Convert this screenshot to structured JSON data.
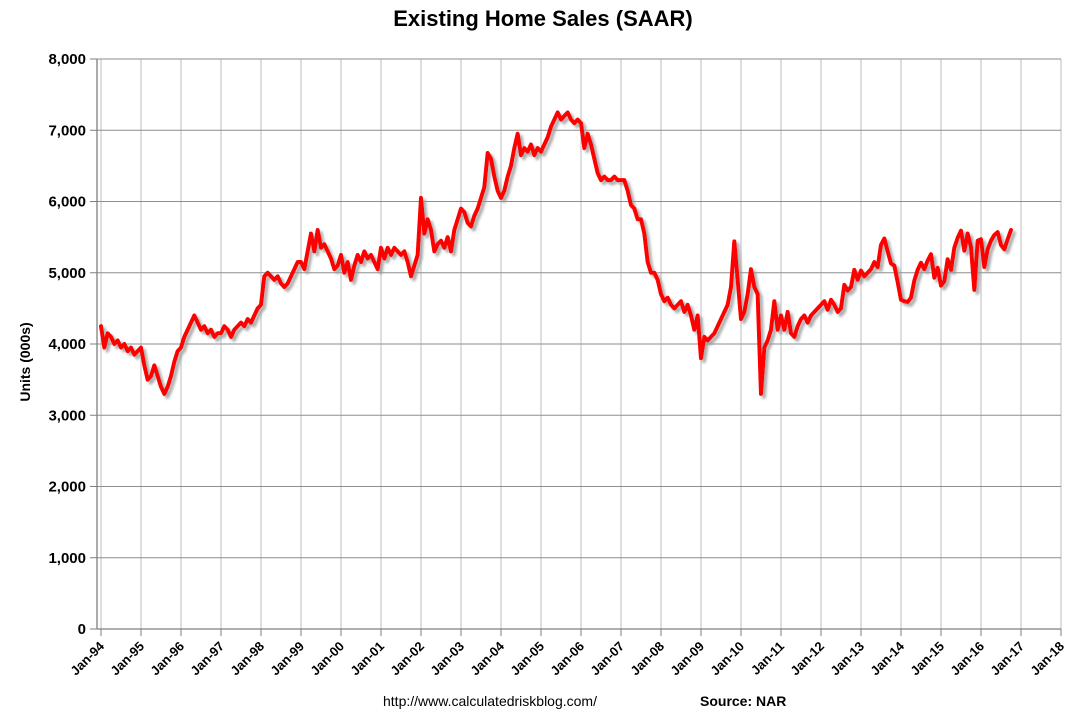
{
  "page": {
    "title": "Existing Home Sales (SAAR)"
  },
  "footer": {
    "url": "http://www.calculatedriskblog.com/",
    "source_label": "Source: NAR"
  },
  "chart_data": {
    "type": "line",
    "title": "Existing Home Sales (SAAR)",
    "xlabel": "",
    "ylabel": "Units (000s)",
    "ylim": [
      0,
      8000
    ],
    "ytick_interval": 1000,
    "ytick_labels": [
      "0",
      "1,000",
      "2,000",
      "3,000",
      "4,000",
      "5,000",
      "6,000",
      "7,000",
      "8,000"
    ],
    "xtick_labels": [
      "Jan-94",
      "Jan-95",
      "Jan-96",
      "Jan-97",
      "Jan-98",
      "Jan-99",
      "Jan-00",
      "Jan-01",
      "Jan-02",
      "Jan-03",
      "Jan-04",
      "Jan-05",
      "Jan-06",
      "Jan-07",
      "Jan-08",
      "Jan-09",
      "Jan-10",
      "Jan-11",
      "Jan-12",
      "Jan-13",
      "Jan-14",
      "Jan-15",
      "Jan-16",
      "Jan-17",
      "Jan-18"
    ],
    "grid": true,
    "legend": "none",
    "colors": {
      "line": "#FF0000",
      "grid_horizontal": "#8e8e8e",
      "grid_vertical": "#bdbdbd",
      "axis": "#7f7f7f",
      "text": "#000000",
      "shadow": "#999999"
    },
    "series": [
      {
        "name": "Existing Home Sales",
        "start_month": "Jan-94",
        "end_month": "Oct-16",
        "frequency": "monthly",
        "values": [
          4250,
          3950,
          4150,
          4100,
          4000,
          4050,
          3950,
          4000,
          3900,
          3950,
          3850,
          3900,
          3950,
          3700,
          3500,
          3550,
          3700,
          3550,
          3400,
          3300,
          3400,
          3550,
          3750,
          3900,
          3950,
          4100,
          4200,
          4300,
          4400,
          4300,
          4200,
          4250,
          4150,
          4200,
          4100,
          4150,
          4150,
          4250,
          4200,
          4100,
          4200,
          4250,
          4300,
          4250,
          4350,
          4300,
          4400,
          4500,
          4550,
          4950,
          5000,
          4950,
          4900,
          4950,
          4850,
          4800,
          4850,
          4950,
          5050,
          5150,
          5150,
          5050,
          5300,
          5550,
          5300,
          5600,
          5350,
          5400,
          5300,
          5200,
          5050,
          5100,
          5250,
          5000,
          5150,
          4900,
          5100,
          5250,
          5150,
          5300,
          5200,
          5250,
          5150,
          5050,
          5350,
          5200,
          5350,
          5250,
          5350,
          5300,
          5250,
          5300,
          5150,
          4950,
          5100,
          5250,
          6050,
          5550,
          5750,
          5600,
          5300,
          5400,
          5450,
          5350,
          5500,
          5300,
          5600,
          5750,
          5900,
          5850,
          5700,
          5650,
          5800,
          5900,
          6050,
          6200,
          6680,
          6600,
          6350,
          6150,
          6050,
          6150,
          6350,
          6500,
          6750,
          6950,
          6650,
          6750,
          6700,
          6800,
          6650,
          6750,
          6700,
          6800,
          6900,
          7050,
          7150,
          7250,
          7150,
          7200,
          7250,
          7150,
          7100,
          7150,
          7100,
          6750,
          6950,
          6800,
          6600,
          6400,
          6300,
          6350,
          6300,
          6300,
          6350,
          6300,
          6300,
          6300,
          6150,
          5950,
          5900,
          5750,
          5750,
          5550,
          5150,
          5000,
          5000,
          4900,
          4700,
          4600,
          4650,
          4550,
          4500,
          4550,
          4600,
          4450,
          4550,
          4400,
          4200,
          4400,
          3800,
          4100,
          4050,
          4100,
          4150,
          4250,
          4350,
          4450,
          4550,
          4800,
          5440,
          4900,
          4350,
          4450,
          4700,
          5050,
          4800,
          4700,
          3300,
          3950,
          4050,
          4200,
          4600,
          4200,
          4400,
          4200,
          4450,
          4150,
          4100,
          4250,
          4350,
          4400,
          4300,
          4400,
          4450,
          4500,
          4550,
          4600,
          4480,
          4620,
          4550,
          4450,
          4500,
          4830,
          4750,
          4800,
          5040,
          4900,
          5030,
          4950,
          5000,
          5050,
          5150,
          5080,
          5390,
          5480,
          5300,
          5130,
          5100,
          4870,
          4620,
          4600,
          4590,
          4650,
          4890,
          5040,
          5140,
          5050,
          5170,
          5260,
          4930,
          5070,
          4820,
          4880,
          5190,
          5040,
          5350,
          5490,
          5590,
          5310,
          5550,
          5360,
          4760,
          5450,
          5470,
          5080,
          5330,
          5450,
          5530,
          5570,
          5390,
          5330,
          5470,
          5600
        ]
      }
    ]
  }
}
